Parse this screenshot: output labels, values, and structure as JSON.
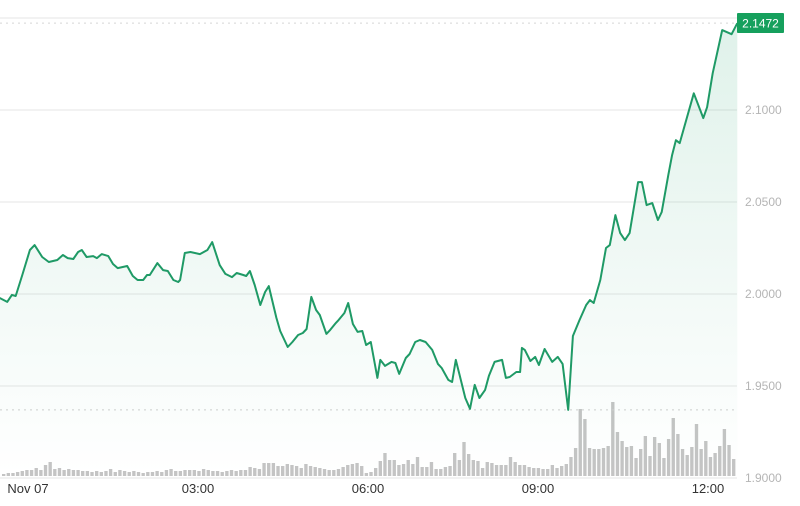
{
  "chart_data": {
    "type": "line",
    "title": "",
    "xlabel": "",
    "ylabel": "",
    "y_axis_position": "right",
    "ylim": [
      1.9,
      2.15
    ],
    "y_ticks": [
      1.9,
      1.95,
      2.0,
      2.05,
      2.1,
      2.15
    ],
    "y_tick_labels": [
      "1.9000",
      "1.9500",
      "2.0000",
      "2.0500",
      "2.1000",
      ""
    ],
    "x_ticks": [
      "00:00",
      "03:00",
      "06:00",
      "09:00",
      "12:00"
    ],
    "x_tick_labels": [
      "Nov 07",
      "03:00",
      "06:00",
      "09:00",
      "12:00"
    ],
    "grid": true,
    "last_price_label": "2.1472",
    "last_price": 2.1472,
    "reference_line": 1.937,
    "colors": {
      "line": "#1f9a66",
      "label_bg": "#16a05d",
      "volume": "#c4c4c4",
      "grid": "#e6e6e6"
    },
    "series": [
      {
        "time": [
          "23:30",
          "23:38",
          "23:43",
          "23:47",
          "23:54",
          "00:02",
          "00:07",
          "00:15",
          "00:22",
          "00:31",
          "00:37",
          "00:42",
          "00:48",
          "00:53",
          "00:57",
          "01:02",
          "01:09",
          "01:13",
          "01:18",
          "01:25",
          "01:30",
          "01:35",
          "01:45",
          "01:51",
          "01:56",
          "02:02",
          "02:06",
          "02:09",
          "02:17",
          "02:23",
          "02:28",
          "02:34",
          "02:39",
          "02:41",
          "02:46",
          "02:52",
          "03:02",
          "03:10",
          "03:15",
          "03:23",
          "03:29",
          "03:36",
          "03:41",
          "03:48",
          "03:51",
          "03:55",
          "04:00",
          "04:06",
          "04:11",
          "04:15",
          "04:23",
          "04:27",
          "04:35",
          "04:40",
          "04:46",
          "04:51",
          "04:55",
          "05:00",
          "05:05",
          "05:09",
          "05:16",
          "05:20",
          "05:26",
          "05:29",
          "05:35",
          "05:39",
          "05:44",
          "05:49",
          "05:54",
          "05:58",
          "06:03",
          "06:10",
          "06:13",
          "06:18",
          "06:25",
          "06:29",
          "06:33",
          "06:40",
          "06:44",
          "06:50",
          "06:55",
          "07:01",
          "07:08",
          "07:14",
          "07:18",
          "07:25",
          "07:29",
          "07:33",
          "07:37",
          "07:43",
          "07:48",
          "07:53",
          "07:58",
          "08:04",
          "08:08",
          "08:14",
          "08:22",
          "08:26",
          "08:30",
          "08:37",
          "08:41",
          "08:43",
          "08:46",
          "08:52",
          "08:57",
          "09:01",
          "09:07",
          "09:15",
          "09:21",
          "09:26",
          "09:32",
          "09:37",
          "09:44",
          "09:51",
          "09:55",
          "09:59",
          "10:06",
          "10:12",
          "10:16",
          "10:22",
          "10:27",
          "10:32",
          "10:37",
          "10:46",
          "10:50",
          "10:55",
          "11:01",
          "11:07",
          "11:11",
          "11:18",
          "11:22",
          "11:26",
          "11:30",
          "11:45",
          "11:55",
          "11:59",
          "12:05",
          "12:15",
          "12:25",
          "12:31"
        ],
        "price": [
          1.9978,
          1.9957,
          1.9995,
          1.9989,
          2.0103,
          2.0239,
          2.0266,
          2.0201,
          2.0174,
          2.0185,
          2.0212,
          2.0195,
          2.019,
          2.0228,
          2.0239,
          2.0201,
          2.0206,
          2.0195,
          2.0217,
          2.0206,
          2.0163,
          2.0141,
          2.0152,
          2.0098,
          2.0076,
          2.0076,
          2.0103,
          2.0103,
          2.0168,
          2.013,
          2.0125,
          2.0076,
          2.0065,
          2.0076,
          2.0223,
          2.0228,
          2.0217,
          2.0239,
          2.0282,
          2.0157,
          2.0109,
          2.0092,
          2.0114,
          2.0103,
          2.0098,
          2.0125,
          2.0049,
          1.994,
          2.0011,
          2.0043,
          1.987,
          1.9799,
          1.9712,
          1.9739,
          1.9777,
          1.9788,
          1.981,
          1.9984,
          1.9913,
          1.9886,
          1.9783,
          1.9805,
          1.9843,
          1.9859,
          1.9897,
          1.9951,
          1.9837,
          1.9794,
          1.9799,
          1.9723,
          1.9739,
          1.9544,
          1.9642,
          1.9609,
          1.9631,
          1.9625,
          1.9566,
          1.9652,
          1.9674,
          1.9739,
          1.975,
          1.9739,
          1.9696,
          1.962,
          1.9598,
          1.9533,
          1.9522,
          1.9642,
          1.956,
          1.9435,
          1.9376,
          1.9506,
          1.9435,
          1.9479,
          1.9555,
          1.9631,
          1.9642,
          1.9544,
          1.9549,
          1.9576,
          1.9576,
          1.9707,
          1.9696,
          1.9636,
          1.9658,
          1.9614,
          1.9701,
          1.9631,
          1.9658,
          1.962,
          1.937,
          1.9772,
          1.9859,
          1.994,
          1.9967,
          1.9951,
          2.0076,
          2.025,
          2.0266,
          2.0429,
          2.0331,
          2.0293,
          2.0331,
          2.0608,
          2.0608,
          2.0483,
          2.0494,
          2.0402,
          2.0445,
          2.0646,
          2.0755,
          2.0836,
          2.082,
          2.1091,
          2.0956,
          2.1015,
          2.12,
          2.1434,
          2.1412,
          2.1472
        ]
      }
    ],
    "volume": [
      2,
      3,
      3,
      4,
      5,
      6,
      6,
      8,
      6,
      11,
      14,
      7,
      8,
      6,
      7,
      6,
      6,
      5,
      5,
      4,
      5,
      4,
      5,
      7,
      4,
      6,
      5,
      4,
      5,
      4,
      3,
      4,
      4,
      5,
      4,
      6,
      7,
      5,
      5,
      6,
      6,
      6,
      5,
      7,
      6,
      5,
      5,
      4,
      5,
      6,
      5,
      6,
      6,
      9,
      8,
      7,
      13,
      13,
      13,
      10,
      10,
      12,
      11,
      10,
      8,
      12,
      10,
      9,
      8,
      7,
      6,
      6,
      7,
      9,
      11,
      12,
      13,
      10,
      3,
      4,
      8,
      15,
      23,
      16,
      16,
      11,
      12,
      16,
      12,
      19,
      9,
      9,
      14,
      7,
      7,
      9,
      10,
      23,
      16,
      34,
      22,
      16,
      15,
      8,
      14,
      13,
      11,
      11,
      11,
      19,
      14,
      11,
      11,
      9,
      8,
      8,
      7,
      7,
      11,
      8,
      10,
      12,
      19,
      28,
      67,
      57,
      28,
      27,
      27,
      28,
      30,
      74,
      44,
      35,
      29,
      30,
      18,
      27,
      40,
      20,
      39,
      33,
      18,
      37,
      58,
      42,
      27,
      21,
      29,
      52,
      27,
      35,
      19,
      23,
      30,
      47,
      31,
      17
    ]
  }
}
